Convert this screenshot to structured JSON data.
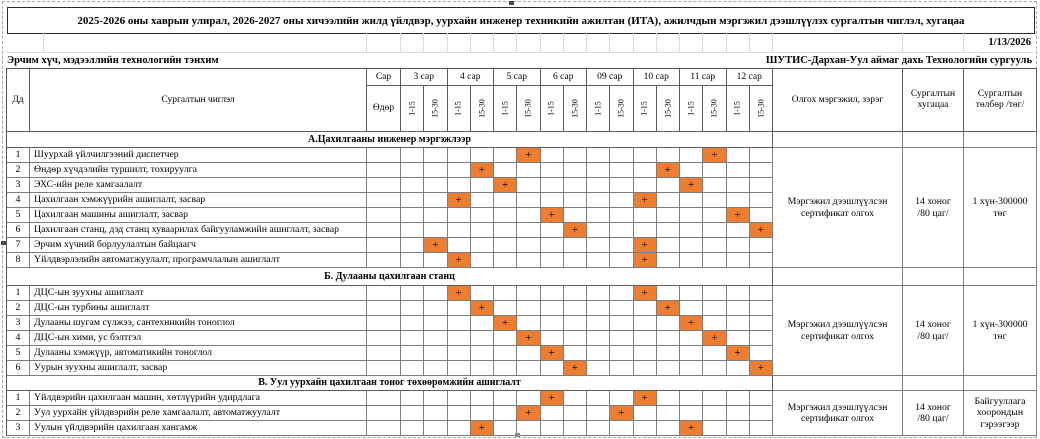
{
  "title": "2025-2026 оны хаврын улирал, 2026-2027 оны хичээлийн жилд үйлдвэр, уурхайн инженер техникийн ажилтан (ИТА), ажилчдын мэргэжил дээшлүүлэх сургалтын чиглэл, хугацаа",
  "date": "1/13/2026",
  "header": {
    "department": "Эрчим хүч, мэдээллийн технологийн тэнхим",
    "school": "ШУТИС-Дархан-Уул аймаг дахь Технологийн сургууль"
  },
  "table": {
    "col_num": "Дд",
    "col_course": "Сургалтын чиглэл",
    "col_month": "Сар",
    "col_day": "Өдөр",
    "months": [
      "3 сар",
      "4 сар",
      "5 сар",
      "6 сар",
      "09 сар",
      "10 сар",
      "11 сар",
      "12 сар"
    ],
    "halves": [
      "1-15",
      "15-30"
    ],
    "col_profession": "Олгох мэргэжил, зэрэг",
    "col_duration": "Сургалтын хугацаа",
    "col_fee": "Сургалтын төлбөр /төг/",
    "mark": "+",
    "colors": {
      "mark_fill": "#ED7D31"
    },
    "sections": [
      {
        "label": "А.Цахилгааны инженер мэргэжлээр",
        "profession": "Мэргэжил дээшлүүлсэн сертификат олгох",
        "duration": "14 хоног\n/80 цаг/",
        "fee": "1 хүн-300000 төг",
        "rows": [
          {
            "num": "1",
            "label": "Шуурхай үйлчилгээний диспетчер",
            "marks": [
              5,
              13
            ]
          },
          {
            "num": "2",
            "label": "Өндөр хүчдэлийн туршилт, тохируулга",
            "marks": [
              3,
              11
            ]
          },
          {
            "num": "3",
            "label": "ЭХС-ийн реле хамгаалалт",
            "marks": [
              4,
              12
            ]
          },
          {
            "num": "4",
            "label": "Цахилгаан хэмжүүрийн ашиглалт, засвар",
            "marks": [
              2,
              10
            ]
          },
          {
            "num": "5",
            "label": "Цахилгаан машины ашиглалт, засвар",
            "marks": [
              6,
              14
            ]
          },
          {
            "num": "6",
            "label": "Цахилгаан станц, дэд станц хуваарилах байгууламжийн ашиглалт, засвар",
            "marks": [
              7,
              15
            ]
          },
          {
            "num": "7",
            "label": "Эрчим хүчний борлуулалтын байцаагч",
            "marks": [
              1,
              10
            ]
          },
          {
            "num": "8",
            "label": "Үйлдвэрлэлийн автоматжуулалт, програмчлалын ашиглалт",
            "marks": [
              2,
              10
            ]
          }
        ]
      },
      {
        "label": "Б. Дулааны цахилгаан станц",
        "profession": "Мэргэжил дээшлүүлсэн сертификат олгох",
        "duration": "14 хоног\n/80 цаг/",
        "fee": "1 хүн-300000 төг",
        "rows": [
          {
            "num": "1",
            "label": "ДЦС-ын зуухны ашиглалт",
            "marks": [
              2,
              10
            ]
          },
          {
            "num": "2",
            "label": "ДЦС-ын турбины ашиглалт",
            "marks": [
              3,
              11
            ]
          },
          {
            "num": "3",
            "label": "Дулааны шугам сүлжээ, сантехникийн тоноглол",
            "marks": [
              4,
              12
            ]
          },
          {
            "num": "4",
            "label": "ДЦС-ын хими, ус бэлтгэл",
            "marks": [
              5,
              13
            ]
          },
          {
            "num": "5",
            "label": "Дулааны хэмжүүр, автоматикийн тоноглол",
            "marks": [
              6,
              14
            ]
          },
          {
            "num": "6",
            "label": "Уурын зуухны ашиглалт, засвар",
            "marks": [
              7,
              15
            ]
          }
        ]
      },
      {
        "label": "В. Уул уурхайн цахилгаан тоног төхөөрөмжийн ашиглалт",
        "profession": "Мэргэжил дээшлүүлсэн сертификат олгох",
        "duration": "14 хоног\n/80 цаг/",
        "fee": "Байгууллага хоорондын гэрээгээр",
        "rows": [
          {
            "num": "1",
            "label": "Үйлдвэрийн цахилгаан машин, хөтлүүрийн удирдлага",
            "marks": [
              6,
              10
            ]
          },
          {
            "num": "2",
            "label": "Уул уурхайн үйлдвэрийн реле хамгаалалт, автоматжуулалт",
            "marks": [
              5,
              9
            ]
          },
          {
            "num": "3",
            "label": "Уулын үйлдвэрийн цахилгаан хангамж",
            "marks": [
              3,
              12
            ]
          }
        ]
      }
    ]
  }
}
